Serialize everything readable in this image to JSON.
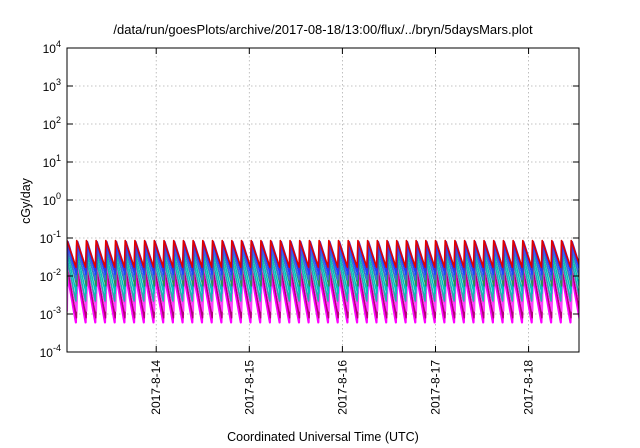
{
  "chart_data": {
    "type": "line",
    "title": "/data/run/goesPlots/archive/2017-08-18/13:00/flux/../bryn/5daysMars.plot",
    "xlabel": "Coordinated Universal Time (UTC)",
    "ylabel": "cGy/day",
    "y_scale": "log",
    "ylim": [
      0.0001,
      10000
    ],
    "xlim": [
      "2017-08-13T01:00",
      "2017-08-18T13:00"
    ],
    "grid": true,
    "legend": "none",
    "y_ticks": [
      {
        "base": "10",
        "exp": "-4",
        "value": 0.0001
      },
      {
        "base": "10",
        "exp": "-3",
        "value": 0.001
      },
      {
        "base": "10",
        "exp": "-2",
        "value": 0.01
      },
      {
        "base": "10",
        "exp": "-1",
        "value": 0.1
      },
      {
        "base": "10",
        "exp": "0",
        "value": 1
      },
      {
        "base": "10",
        "exp": "1",
        "value": 10
      },
      {
        "base": "10",
        "exp": "2",
        "value": 100
      },
      {
        "base": "10",
        "exp": "3",
        "value": 1000
      },
      {
        "base": "10",
        "exp": "4",
        "value": 10000
      }
    ],
    "x_ticks": [
      {
        "label": "2017-8-14",
        "value": "2017-08-14T00:00"
      },
      {
        "label": "2017-8-15",
        "value": "2017-08-15T00:00"
      },
      {
        "label": "2017-8-16",
        "value": "2017-08-16T00:00"
      },
      {
        "label": "2017-8-17",
        "value": "2017-08-17T00:00"
      },
      {
        "label": "2017-8-18",
        "value": "2017-08-18T00:00"
      }
    ],
    "sawtooth_period_hours": 2.5,
    "series": [
      {
        "color": "#ff00ff",
        "peak": 0.013,
        "trough": 0.0006
      },
      {
        "color": "#b4007a",
        "peak": 0.016,
        "trough": 0.0008
      },
      {
        "color": "#ff40ff",
        "peak": 0.022,
        "trough": 0.0012
      },
      {
        "color": "#20b2aa",
        "peak": 0.03,
        "trough": 0.0022
      },
      {
        "color": "#00bfbf",
        "peak": 0.04,
        "trough": 0.0035
      },
      {
        "color": "#2e8b57",
        "peak": 0.052,
        "trough": 0.0055
      },
      {
        "color": "#4169e1",
        "peak": 0.065,
        "trough": 0.008
      },
      {
        "color": "#1e40ff",
        "peak": 0.075,
        "trough": 0.011
      },
      {
        "color": "#4a2fd0",
        "peak": 0.08,
        "trough": 0.014
      },
      {
        "color": "#e00000",
        "peak": 0.086,
        "trough": 0.017
      }
    ]
  }
}
